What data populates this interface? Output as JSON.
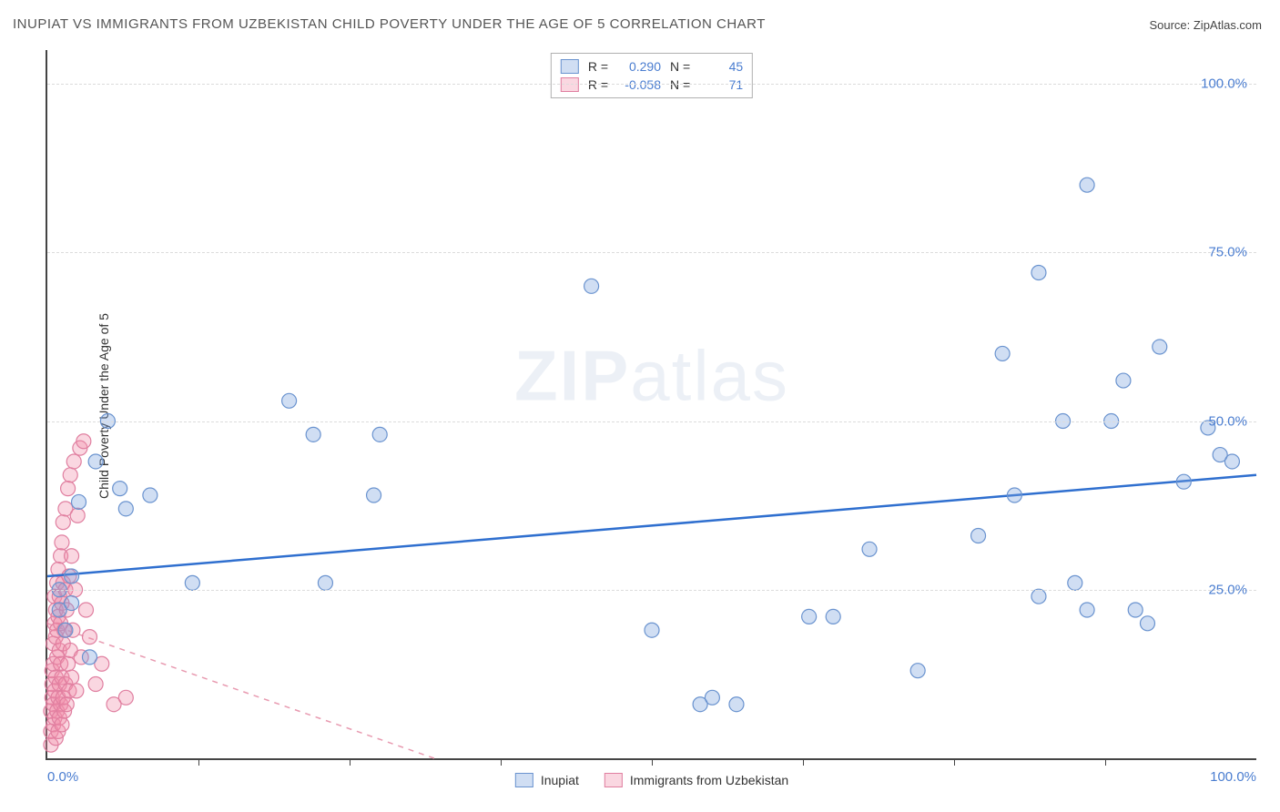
{
  "chart": {
    "type": "scatter",
    "title": "INUPIAT VS IMMIGRANTS FROM UZBEKISTAN CHILD POVERTY UNDER THE AGE OF 5 CORRELATION CHART",
    "source_label": "Source: ",
    "source_value": "ZipAtlas.com",
    "ylabel": "Child Poverty Under the Age of 5",
    "watermark_bold": "ZIP",
    "watermark_rest": "atlas",
    "background_color": "#ffffff",
    "axis_color": "#444444",
    "grid_color": "#dcdcdc",
    "title_color": "#555555",
    "tick_label_color": "#4a7dd0",
    "xlim": [
      0,
      100
    ],
    "ylim": [
      0,
      105
    ],
    "ytick_values": [
      25,
      50,
      75,
      100
    ],
    "ytick_labels": [
      "25.0%",
      "50.0%",
      "75.0%",
      "100.0%"
    ],
    "xtick_values": [
      0,
      50,
      100
    ],
    "xtick_labels": [
      "0.0%",
      "",
      "100.0%"
    ],
    "xtick_mark_values": [
      12.5,
      25,
      37.5,
      50,
      62.5,
      75,
      87.5
    ],
    "series": [
      {
        "name": "Inupiat",
        "marker_fill": "rgba(120,160,220,0.35)",
        "marker_stroke": "#6a93cf",
        "marker_radius": 8,
        "trend_color": "#2f6fcf",
        "trend_width": 2.5,
        "trend_dash": "none",
        "trend": {
          "x1": 0,
          "y1": 27,
          "x2": 100,
          "y2": 42
        },
        "R": "0.290",
        "N": "45",
        "points": [
          [
            1,
            22
          ],
          [
            1,
            25
          ],
          [
            1.5,
            19
          ],
          [
            2,
            23
          ],
          [
            2,
            27
          ],
          [
            2.6,
            38
          ],
          [
            3.5,
            15
          ],
          [
            4,
            44
          ],
          [
            5,
            50
          ],
          [
            6,
            40
          ],
          [
            6.5,
            37
          ],
          [
            8.5,
            39
          ],
          [
            12,
            26
          ],
          [
            20,
            53
          ],
          [
            22,
            48
          ],
          [
            23,
            26
          ],
          [
            27,
            39
          ],
          [
            27.5,
            48
          ],
          [
            45,
            70
          ],
          [
            50,
            19
          ],
          [
            54,
            8
          ],
          [
            55,
            9
          ],
          [
            57,
            8
          ],
          [
            63,
            21
          ],
          [
            65,
            21
          ],
          [
            68,
            31
          ],
          [
            72,
            13
          ],
          [
            77,
            33
          ],
          [
            79,
            60
          ],
          [
            80,
            39
          ],
          [
            82,
            24
          ],
          [
            82,
            72
          ],
          [
            84,
            50
          ],
          [
            85,
            26
          ],
          [
            86,
            22
          ],
          [
            86,
            85
          ],
          [
            88,
            50
          ],
          [
            89,
            56
          ],
          [
            90,
            22
          ],
          [
            91,
            20
          ],
          [
            92,
            61
          ],
          [
            94,
            41
          ],
          [
            96,
            49
          ],
          [
            97,
            45
          ],
          [
            98,
            44
          ]
        ]
      },
      {
        "name": "Immigrants from Uzbekistan",
        "marker_fill": "rgba(240,140,170,0.35)",
        "marker_stroke": "#e07fa0",
        "marker_radius": 8,
        "trend_color": "#e89ab0",
        "trend_width": 1.5,
        "trend_dash": "6,6",
        "trend": {
          "x1": 0,
          "y1": 20,
          "x2": 32,
          "y2": 0
        },
        "R": "-0.058",
        "N": "71",
        "points": [
          [
            0.3,
            2
          ],
          [
            0.3,
            4
          ],
          [
            0.3,
            7
          ],
          [
            0.4,
            9
          ],
          [
            0.4,
            11
          ],
          [
            0.4,
            13
          ],
          [
            0.5,
            5
          ],
          [
            0.5,
            8
          ],
          [
            0.5,
            14
          ],
          [
            0.5,
            17
          ],
          [
            0.6,
            6
          ],
          [
            0.6,
            10
          ],
          [
            0.6,
            20
          ],
          [
            0.6,
            24
          ],
          [
            0.7,
            3
          ],
          [
            0.7,
            12
          ],
          [
            0.7,
            18
          ],
          [
            0.7,
            22
          ],
          [
            0.8,
            7
          ],
          [
            0.8,
            15
          ],
          [
            0.8,
            19
          ],
          [
            0.8,
            26
          ],
          [
            0.9,
            4
          ],
          [
            0.9,
            9
          ],
          [
            0.9,
            21
          ],
          [
            0.9,
            28
          ],
          [
            1.0,
            6
          ],
          [
            1.0,
            11
          ],
          [
            1.0,
            16
          ],
          [
            1.0,
            24
          ],
          [
            1.1,
            8
          ],
          [
            1.1,
            14
          ],
          [
            1.1,
            20
          ],
          [
            1.1,
            30
          ],
          [
            1.2,
            5
          ],
          [
            1.2,
            12
          ],
          [
            1.2,
            23
          ],
          [
            1.2,
            32
          ],
          [
            1.3,
            9
          ],
          [
            1.3,
            17
          ],
          [
            1.3,
            26
          ],
          [
            1.3,
            35
          ],
          [
            1.4,
            7
          ],
          [
            1.4,
            19
          ],
          [
            1.5,
            11
          ],
          [
            1.5,
            25
          ],
          [
            1.5,
            37
          ],
          [
            1.6,
            8
          ],
          [
            1.6,
            22
          ],
          [
            1.7,
            14
          ],
          [
            1.7,
            40
          ],
          [
            1.8,
            10
          ],
          [
            1.8,
            27
          ],
          [
            1.9,
            16
          ],
          [
            1.9,
            42
          ],
          [
            2.0,
            12
          ],
          [
            2.0,
            30
          ],
          [
            2.1,
            19
          ],
          [
            2.2,
            44
          ],
          [
            2.3,
            25
          ],
          [
            2.4,
            10
          ],
          [
            2.5,
            36
          ],
          [
            2.7,
            46
          ],
          [
            2.8,
            15
          ],
          [
            3.0,
            47
          ],
          [
            3.2,
            22
          ],
          [
            3.5,
            18
          ],
          [
            4.0,
            11
          ],
          [
            4.5,
            14
          ],
          [
            5.5,
            8
          ],
          [
            6.5,
            9
          ]
        ]
      }
    ],
    "legend_top_rows": [
      {
        "swatch_fill": "rgba(120,160,220,0.35)",
        "swatch_stroke": "#6a93cf",
        "R_label": "R =",
        "R": "0.290",
        "N_label": "N =",
        "N": "45"
      },
      {
        "swatch_fill": "rgba(240,140,170,0.35)",
        "swatch_stroke": "#e07fa0",
        "R_label": "R =",
        "R": "-0.058",
        "N_label": "N =",
        "N": "71"
      }
    ]
  }
}
